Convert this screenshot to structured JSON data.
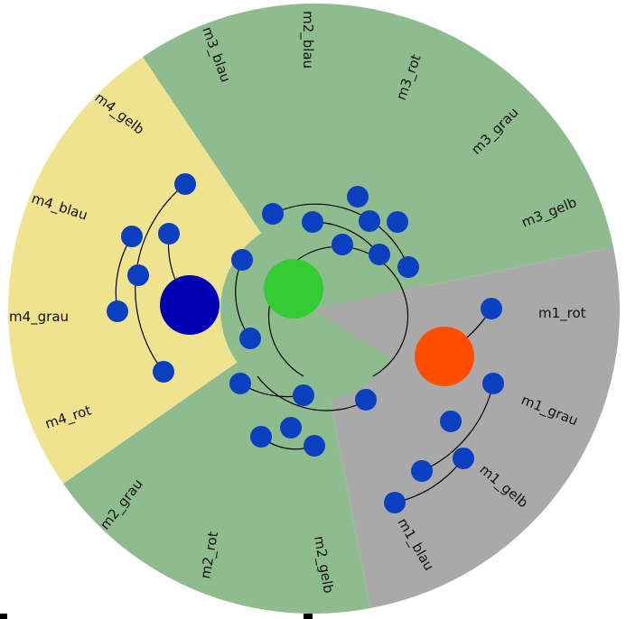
{
  "colors": {
    "sector_green": "#8fbc8f",
    "sector_yellow": "#efe38f",
    "sector_gray": "#a9a9a9",
    "leaf_node": "#0a3fbf",
    "hub_green": "#33cc33",
    "hub_blue": "#0000b3",
    "hub_orange": "#ff4d00",
    "line": "#000000"
  },
  "sectors": [
    {
      "name": "m1",
      "color_key": "sector_gray"
    },
    {
      "name": "m2",
      "color_key": "sector_green"
    },
    {
      "name": "m3",
      "color_key": "sector_green"
    },
    {
      "name": "m4",
      "color_key": "sector_yellow"
    }
  ],
  "labels": [
    "m1_rot",
    "m1_grau",
    "m1_gelb",
    "m1_blau",
    "m2_gelb",
    "m2_rot",
    "m2_grau",
    "m4_rot",
    "m4_grau",
    "m4_blau",
    "m4_gelb",
    "m3_blau",
    "m2_blau",
    "m3_rot",
    "m3_grau",
    "m3_gelb"
  ]
}
